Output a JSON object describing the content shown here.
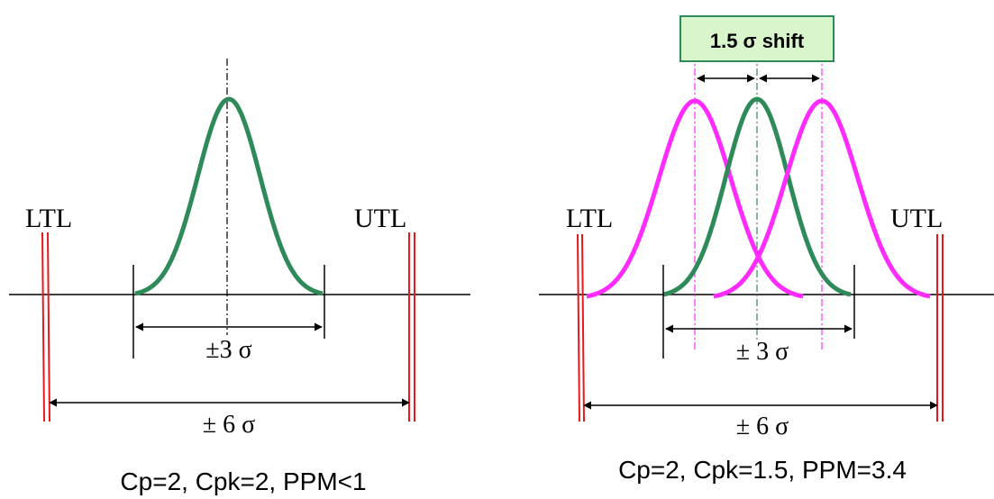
{
  "colors": {
    "tolerance_line": "#e8191c",
    "nominal_curve": "#2f8a5a",
    "shifted_curve": "#ff2bff",
    "axis": "#000000",
    "shift_box_fill": "#d8f5cc",
    "shift_box_border": "#2f8a5a"
  },
  "left_panel": {
    "ltl_label": "LTL",
    "utl_label": "UTL",
    "three_sigma_label": "±3 σ",
    "six_sigma_label": "± 6 σ",
    "caption": "Cp=2, Cpk=2, PPM<1"
  },
  "right_panel": {
    "ltl_label": "LTL",
    "utl_label": "UTL",
    "three_sigma_label": "± 3 σ",
    "six_sigma_label": "± 6 σ",
    "shift_label": "1.5 σ shift",
    "caption": "Cp=2, Cpk=1.5, PPM=3.4"
  }
}
